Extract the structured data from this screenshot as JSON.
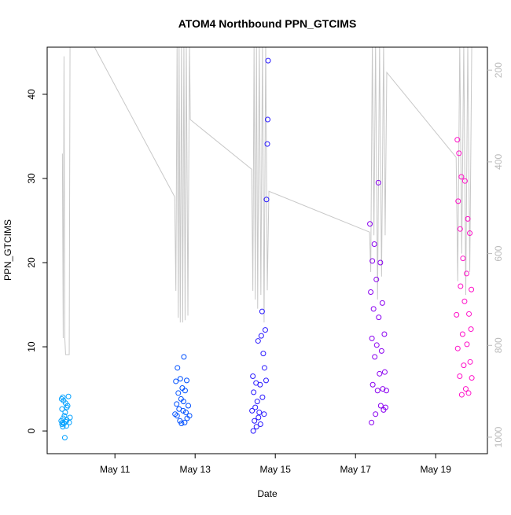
{
  "chart_data": {
    "type": "scatter",
    "title": "ATOM4 Northbound PPN_GTCIMS",
    "x_label": "Date",
    "y_label": "PPN_GTCIMS",
    "xlim": [
      9.31,
      20.29
    ],
    "xticks": [
      {
        "value": 11,
        "label": "May 11"
      },
      {
        "value": 13,
        "label": "May 13"
      },
      {
        "value": 15,
        "label": "May 15"
      },
      {
        "value": 17,
        "label": "May 17"
      },
      {
        "value": 19,
        "label": "May 19"
      }
    ],
    "ylim": [
      -2.7,
      45.6
    ],
    "yticks": [
      0,
      10,
      20,
      30,
      40
    ],
    "y2lim": [
      1036,
      150
    ],
    "y2ticks": [
      200,
      400,
      600,
      800,
      1000
    ],
    "series": [
      {
        "color": "#00a0ff",
        "x": [
          9.66,
          9.67,
          9.68,
          9.68,
          9.69,
          9.7,
          9.7,
          9.71,
          9.72,
          9.73,
          9.74,
          9.75,
          9.76,
          9.77,
          9.78,
          9.79,
          9.8,
          9.8,
          9.82,
          9.84,
          9.86,
          9.88
        ],
        "values": [
          1.2,
          3.8,
          0.8,
          2.6,
          1.0,
          4.0,
          0.5,
          1.5,
          3.6,
          0.9,
          1.8,
          -0.8,
          2.2,
          3.3,
          1.1,
          0.6,
          2.8,
          1.3,
          3.0,
          4.1,
          1.0,
          1.6
        ]
      },
      {
        "color": "#0050ff",
        "x": [
          12.5,
          12.52,
          12.54,
          12.55,
          12.56,
          12.58,
          12.6,
          12.62,
          12.63,
          12.65,
          12.66,
          12.68,
          12.7,
          12.71,
          12.72,
          12.74,
          12.75,
          12.77,
          12.79,
          12.8,
          12.83,
          12.86
        ],
        "values": [
          2.0,
          5.9,
          3.2,
          1.8,
          7.5,
          4.5,
          2.6,
          1.2,
          6.2,
          3.8,
          0.9,
          5.1,
          2.4,
          3.5,
          8.8,
          1.0,
          4.8,
          2.2,
          6.0,
          1.5,
          3.0,
          1.8
        ]
      },
      {
        "color": "#2a1aff",
        "x": [
          14.42,
          14.44,
          14.45,
          14.46,
          14.48,
          14.5,
          14.52,
          14.53,
          14.55,
          14.57,
          14.58,
          14.6,
          14.62,
          14.63,
          14.65,
          14.67,
          14.68,
          14.7,
          14.72,
          14.73,
          14.75,
          14.77,
          14.78,
          14.8,
          14.81,
          14.82
        ],
        "values": [
          2.4,
          6.5,
          0,
          4.6,
          1.2,
          2.8,
          5.7,
          0.5,
          3.5,
          10.7,
          1.6,
          2.2,
          5.5,
          0.8,
          11.3,
          14.2,
          4.0,
          9.2,
          2.0,
          7.5,
          12.0,
          6.0,
          27.5,
          34.1,
          37.0,
          44.0
        ]
      },
      {
        "color": "#8a00f0",
        "x": [
          17.36,
          17.38,
          17.4,
          17.41,
          17.42,
          17.43,
          17.45,
          17.47,
          17.48,
          17.5,
          17.52,
          17.53,
          17.55,
          17.57,
          17.58,
          17.6,
          17.62,
          17.63,
          17.65,
          17.67,
          17.68,
          17.7,
          17.72,
          17.73,
          17.75,
          17.77
        ],
        "values": [
          24.6,
          16.5,
          1.0,
          11.0,
          20.2,
          5.5,
          14.5,
          22.2,
          8.8,
          2.0,
          18.0,
          10.2,
          4.8,
          29.5,
          13.5,
          6.8,
          20.0,
          3.0,
          9.5,
          15.2,
          5.0,
          2.5,
          11.5,
          7.0,
          2.8,
          4.8
        ]
      },
      {
        "color": "#ff10c8",
        "x": [
          19.52,
          19.54,
          19.55,
          19.56,
          19.58,
          19.6,
          19.61,
          19.62,
          19.64,
          19.65,
          19.67,
          19.68,
          19.7,
          19.72,
          19.73,
          19.75,
          19.77,
          19.78,
          19.8,
          19.82,
          19.83,
          19.85,
          19.86,
          19.88,
          19.89,
          19.9
        ],
        "values": [
          13.8,
          34.6,
          9.8,
          27.3,
          33.0,
          6.5,
          24.0,
          17.2,
          30.2,
          4.3,
          11.5,
          20.5,
          7.8,
          15.4,
          29.7,
          5.0,
          18.7,
          10.3,
          25.2,
          4.5,
          13.9,
          23.5,
          8.2,
          12.1,
          16.8,
          6.3
        ]
      },
      {
        "type": "line",
        "axis": "y2",
        "color": "#c8c8c8",
        "x": [
          9.69,
          9.71,
          9.73,
          9.75,
          9.77,
          9.8,
          9.86,
          9.88,
          9.9,
          10.49,
          12.49,
          12.52,
          12.55,
          12.58,
          12.6,
          12.63,
          12.66,
          12.69,
          12.72,
          12.75,
          12.78,
          12.82,
          12.86,
          12.88,
          14.41,
          14.44,
          14.47,
          14.5,
          14.53,
          14.56,
          14.6,
          14.64,
          14.68,
          14.72,
          14.76,
          14.8,
          14.84,
          17.35,
          17.38,
          17.42,
          17.46,
          17.5,
          17.55,
          17.6,
          17.65,
          17.7,
          17.74,
          17.78,
          19.51,
          19.55,
          19.6,
          19.65,
          19.7,
          19.75,
          19.8,
          19.85,
          19.9
        ],
        "values": [
          382,
          784,
          170,
          784,
          820,
          820,
          820,
          150,
          150,
          150,
          476,
          681,
          140,
          740,
          140,
          750,
          140,
          750,
          140,
          745,
          140,
          735,
          140,
          308,
          416,
          681,
          140,
          700,
          140,
          720,
          140,
          690,
          140,
          750,
          140,
          680,
          464,
          553,
          640,
          140,
          560,
          140,
          700,
          140,
          650,
          140,
          560,
          205,
          390,
          660,
          140,
          600,
          140,
          690,
          140,
          640,
          140
        ]
      }
    ]
  }
}
